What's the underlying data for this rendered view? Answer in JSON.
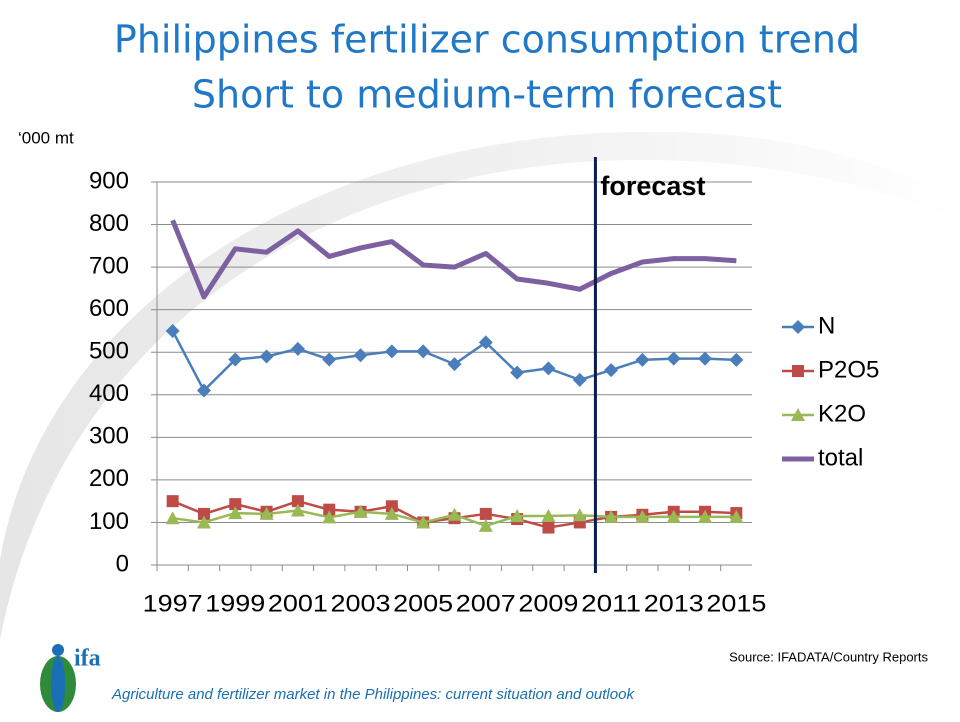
{
  "chart_data": {
    "type": "line",
    "title": [
      "Philippines fertilizer consumption trend",
      "Short to medium-term forecast"
    ],
    "y_axis_label": "‘000 mt",
    "x": [
      1997,
      1998,
      1999,
      2000,
      2001,
      2002,
      2003,
      2004,
      2005,
      2006,
      2007,
      2008,
      2009,
      2010,
      2011,
      2012,
      2013,
      2014,
      2015
    ],
    "xlim": [
      1996.5,
      2015.5
    ],
    "xticks": [
      1997,
      1999,
      2001,
      2003,
      2005,
      2007,
      2009,
      2011,
      2013,
      2015
    ],
    "ylim": [
      0,
      900
    ],
    "yticks": [
      0,
      100,
      200,
      300,
      400,
      500,
      600,
      700,
      800,
      900
    ],
    "forecast_line": {
      "label": "forecast",
      "x": 2010.5
    },
    "legend": "right",
    "series": [
      {
        "name": "N",
        "color": "#4a7ebb",
        "marker": "diamond",
        "values": [
          550,
          410,
          483,
          490,
          508,
          483,
          493,
          502,
          502,
          472,
          523,
          452,
          462,
          435,
          458,
          482,
          485,
          485,
          482
        ]
      },
      {
        "name": "P2O5",
        "color": "#be4b48",
        "marker": "square",
        "values": [
          150,
          120,
          143,
          125,
          150,
          130,
          125,
          138,
          100,
          110,
          120,
          108,
          88,
          100,
          113,
          118,
          125,
          125,
          122
        ]
      },
      {
        "name": "K2O",
        "color": "#98b954",
        "marker": "triangle",
        "values": [
          110,
          100,
          122,
          120,
          128,
          112,
          125,
          120,
          100,
          118,
          92,
          115,
          115,
          117,
          113,
          113,
          113,
          113,
          113
        ]
      },
      {
        "name": "total",
        "color": "#7d60a0",
        "marker": "none",
        "values": [
          810,
          630,
          743,
          735,
          785,
          725,
          745,
          760,
          705,
          700,
          732,
          672,
          662,
          648,
          685,
          712,
          720,
          720,
          715
        ]
      }
    ]
  },
  "source": "Source: IFADATA/Country Reports",
  "logo": "ifa",
  "footer": "Agriculture and fertilizer market in the Philippines: current situation and outlook"
}
